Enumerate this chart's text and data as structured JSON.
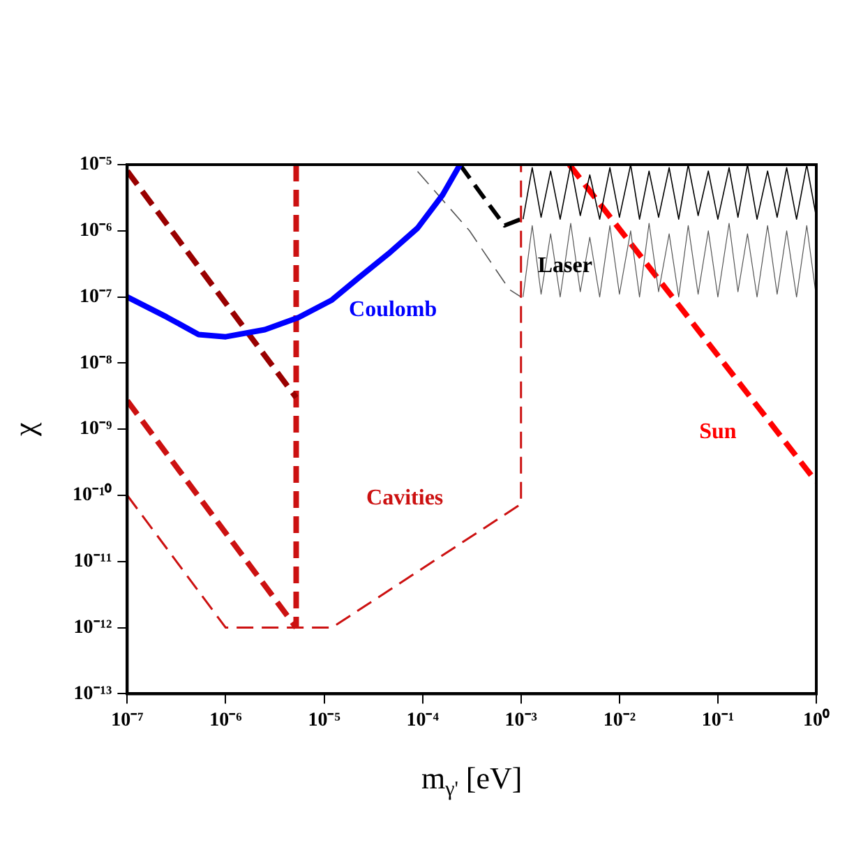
{
  "chart_data": {
    "type": "line",
    "xlabel": "m$_{γ'}$ [eV]",
    "ylabel": "χ",
    "log": "xy",
    "grid": false,
    "legend": false,
    "marker": "none",
    "xlim": [
      1e-07,
      1
    ],
    "ylim": [
      1e-13,
      1e-05
    ],
    "xticks": [
      {
        "value": 1e-07,
        "label": "10⁻⁷"
      },
      {
        "value": 1e-06,
        "label": "10⁻⁶"
      },
      {
        "value": 1e-05,
        "label": "10⁻⁵"
      },
      {
        "value": 0.0001,
        "label": "10⁻⁴"
      },
      {
        "value": 0.001,
        "label": "10⁻³"
      },
      {
        "value": 0.01,
        "label": "10⁻²"
      },
      {
        "value": 0.1,
        "label": "10⁻¹"
      },
      {
        "value": 1,
        "label": "10⁰"
      }
    ],
    "yticks": [
      {
        "value": 1e-13,
        "label": "10⁻¹³"
      },
      {
        "value": 1e-12,
        "label": "10⁻¹²"
      },
      {
        "value": 1e-11,
        "label": "10⁻¹¹"
      },
      {
        "value": 1e-10,
        "label": "10⁻¹⁰"
      },
      {
        "value": 1e-09,
        "label": "10⁻⁹"
      },
      {
        "value": 1e-08,
        "label": "10⁻⁸"
      },
      {
        "value": 1e-07,
        "label": "10⁻⁷"
      },
      {
        "value": 1e-06,
        "label": "10⁻⁶"
      },
      {
        "value": 1e-05,
        "label": "10⁻⁵"
      }
    ],
    "series": [
      {
        "name": "Coulomb",
        "color": "#0000ff",
        "line_style": "solid",
        "x": [
          1e-07,
          2.5e-07,
          5.3e-07,
          1e-06,
          2.5e-06,
          5.5e-06,
          1.2e-05,
          2.2e-05,
          4.5e-05,
          8.9e-05,
          0.00016,
          0.00024
        ],
        "values": [
          1e-07,
          5e-08,
          2.7e-08,
          2.5e-08,
          3.2e-08,
          4.9e-08,
          9e-08,
          1.9e-07,
          4.5e-07,
          1.1e-06,
          3.5e-06,
          1e-05
        ]
      },
      {
        "color": "#990000",
        "line_style": "dashed",
        "x": [
          1e-07,
          5.2e-06
        ],
        "values": [
          8e-06,
          3e-09
        ]
      },
      {
        "color": "#cc1111",
        "line_style": "dashed",
        "x": [
          5.2e-06,
          5.2e-06
        ],
        "values": [
          1e-05,
          1e-12
        ]
      },
      {
        "color": "#cc1111",
        "line_style": "dashed",
        "x": [
          1e-07,
          5.2e-06
        ],
        "values": [
          2.7e-09,
          1e-12
        ]
      },
      {
        "name": "Cavities",
        "color": "#cc1111",
        "line_style": "dashed",
        "x": [
          1e-07,
          1e-06,
          1.2e-05,
          0.001,
          0.001
        ],
        "values": [
          1e-10,
          1e-12,
          1e-12,
          7.4e-11,
          1e-05
        ]
      },
      {
        "color": "#555555",
        "line_style": "dashed",
        "x": [
          8.9e-05,
          0.0003,
          0.00076,
          0.001
        ],
        "values": [
          7.9e-06,
          1e-06,
          1.3e-07,
          1e-07
        ]
      },
      {
        "color": "#000000",
        "line_style": "dashed",
        "x": [
          0.00024,
          0.0004,
          0.00068,
          0.001
        ],
        "values": [
          1e-05,
          3.5e-06,
          1.2e-06,
          1.5e-06
        ]
      },
      {
        "color": "#555555",
        "line_style": "solid",
        "x": [
          0.00105,
          0.0013,
          0.0016,
          0.002,
          0.0025,
          0.0032,
          0.004,
          0.005,
          0.0063,
          0.008,
          0.01,
          0.013,
          0.016,
          0.02,
          0.025,
          0.032,
          0.04,
          0.05,
          0.063,
          0.08,
          0.1,
          0.13,
          0.16,
          0.2,
          0.25,
          0.32,
          0.4,
          0.5,
          0.63,
          0.8,
          1
        ],
        "values": [
          1e-07,
          1.2e-06,
          1.1e-07,
          9e-07,
          1e-07,
          1.3e-06,
          1.2e-07,
          8e-07,
          1e-07,
          1.2e-06,
          1.1e-07,
          1e-06,
          1e-07,
          1.3e-06,
          1.2e-07,
          9e-07,
          1e-07,
          1.2e-06,
          1.1e-07,
          1e-06,
          1e-07,
          1.3e-06,
          1.2e-07,
          9e-07,
          1e-07,
          1.2e-06,
          1.1e-07,
          1e-06,
          1e-07,
          1.2e-06,
          1e-07
        ]
      },
      {
        "name": "Laser",
        "color": "#000000",
        "line_style": "solid",
        "x": [
          0.00105,
          0.0013,
          0.0016,
          0.002,
          0.0025,
          0.0032,
          0.004,
          0.005,
          0.0063,
          0.008,
          0.01,
          0.013,
          0.016,
          0.02,
          0.025,
          0.032,
          0.04,
          0.05,
          0.063,
          0.08,
          0.1,
          0.13,
          0.16,
          0.2,
          0.25,
          0.32,
          0.4,
          0.5,
          0.63,
          0.8,
          1
        ],
        "values": [
          1.5e-06,
          9e-06,
          1.6e-06,
          8e-06,
          1.5e-06,
          1e-05,
          1.7e-06,
          7e-06,
          1.5e-06,
          9e-06,
          1.6e-06,
          1e-05,
          1.5e-06,
          8e-06,
          1.6e-06,
          9e-06,
          1.5e-06,
          1e-05,
          1.7e-06,
          8e-06,
          1.5e-06,
          9e-06,
          1.6e-06,
          1e-05,
          1.5e-06,
          8e-06,
          1.6e-06,
          9e-06,
          1.5e-06,
          1e-05,
          1.6e-06
        ]
      },
      {
        "name": "Sun",
        "color": "#ff0000",
        "line_style": "dashed",
        "x": [
          0.0031,
          1
        ],
        "values": [
          1e-05,
          1.6e-10
        ]
      }
    ]
  }
}
